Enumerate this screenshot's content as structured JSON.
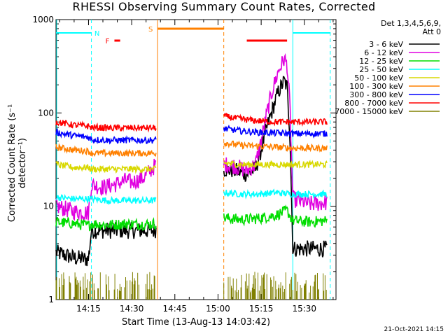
{
  "chart_data": {
    "type": "line",
    "title": "RHESSI Observing Summary Count Rates, Corrected",
    "xlabel": "Start Time (13-Aug-13 14:03:42)",
    "ylabel": "Corrected Count Rate (s⁻¹ detector⁻¹)",
    "yscale": "log",
    "ylim": [
      1,
      1000
    ],
    "xlim": [
      "14:03:42",
      "15:41:00"
    ],
    "x_ticks": [
      "14:15",
      "14:30",
      "14:45",
      "15:00",
      "15:15",
      "15:30"
    ],
    "y_ticks": [
      "1",
      "10",
      "100",
      "1000"
    ],
    "legend_header": [
      "Det 1,3,4,5,6,9,",
      "Att 0"
    ],
    "legend_position": "right",
    "data_gaps": [
      [
        "14:38:40",
        "15:02:00"
      ]
    ],
    "series": [
      {
        "name": "3 - 6 keV",
        "color": "#000000",
        "points": [
          [
            "14:03:42",
            3.2
          ],
          [
            "14:10",
            2.8
          ],
          [
            "14:15",
            2.7
          ],
          [
            "14:16",
            5.5
          ],
          [
            "14:22",
            5.5
          ],
          [
            "14:28",
            5.5
          ],
          [
            "14:34",
            5.5
          ],
          [
            "14:38",
            5.5
          ],
          [
            "15:02",
            25
          ],
          [
            "15:06",
            24
          ],
          [
            "15:10",
            22
          ],
          [
            "15:13",
            25
          ],
          [
            "15:15",
            40
          ],
          [
            "15:17",
            70
          ],
          [
            "15:19",
            110
          ],
          [
            "15:21",
            170
          ],
          [
            "15:23",
            220
          ],
          [
            "15:24",
            190
          ],
          [
            "15:25",
            60
          ],
          [
            "15:26",
            3.5
          ],
          [
            "15:32",
            3.5
          ],
          [
            "15:38",
            3.5
          ]
        ]
      },
      {
        "name": "6 - 12 keV",
        "color": "#e000e0",
        "points": [
          [
            "14:03:42",
            10
          ],
          [
            "14:10",
            8.8
          ],
          [
            "14:15",
            8.5
          ],
          [
            "14:16",
            17
          ],
          [
            "14:20",
            16
          ],
          [
            "14:24",
            17
          ],
          [
            "14:28",
            19
          ],
          [
            "14:30",
            18
          ],
          [
            "14:34",
            20
          ],
          [
            "14:38",
            27
          ],
          [
            "15:02",
            28
          ],
          [
            "15:06",
            27
          ],
          [
            "15:10",
            24
          ],
          [
            "15:13",
            28
          ],
          [
            "15:15",
            50
          ],
          [
            "15:17",
            100
          ],
          [
            "15:19",
            180
          ],
          [
            "15:21",
            280
          ],
          [
            "15:23",
            380
          ],
          [
            "15:24",
            330
          ],
          [
            "15:25",
            120
          ],
          [
            "15:26",
            12
          ],
          [
            "15:32",
            10.5
          ],
          [
            "15:38",
            11
          ]
        ]
      },
      {
        "name": "12 - 25 keV",
        "color": "#00dd00",
        "points": [
          [
            "14:03:42",
            6.8
          ],
          [
            "14:10",
            6.5
          ],
          [
            "14:15",
            6.2
          ],
          [
            "14:16",
            6.5
          ],
          [
            "14:22",
            6.3
          ],
          [
            "14:28",
            6.5
          ],
          [
            "14:34",
            6.4
          ],
          [
            "14:38",
            6.5
          ],
          [
            "15:02",
            7.5
          ],
          [
            "15:08",
            7.2
          ],
          [
            "15:14",
            7.4
          ],
          [
            "15:20",
            8
          ],
          [
            "15:24",
            9
          ],
          [
            "15:26",
            7
          ],
          [
            "15:32",
            6.8
          ],
          [
            "15:38",
            7
          ]
        ]
      },
      {
        "name": "25 - 50 keV",
        "color": "#00ffff",
        "points": [
          [
            "14:03:42",
            12.5
          ],
          [
            "14:10",
            12
          ],
          [
            "14:15",
            12
          ],
          [
            "14:16",
            12
          ],
          [
            "14:22",
            11.5
          ],
          [
            "14:28",
            11.5
          ],
          [
            "14:34",
            11.5
          ],
          [
            "14:38",
            11.5
          ],
          [
            "15:02",
            14
          ],
          [
            "15:08",
            13.5
          ],
          [
            "15:14",
            13.5
          ],
          [
            "15:20",
            14
          ],
          [
            "15:26",
            13.5
          ],
          [
            "15:32",
            13.5
          ],
          [
            "15:38",
            13.5
          ]
        ]
      },
      {
        "name": "50 - 100 keV",
        "color": "#d8d800",
        "points": [
          [
            "14:03:42",
            28
          ],
          [
            "14:10",
            26
          ],
          [
            "14:15",
            26
          ],
          [
            "14:16",
            25
          ],
          [
            "14:22",
            25
          ],
          [
            "14:28",
            25
          ],
          [
            "14:34",
            25
          ],
          [
            "14:38",
            25
          ],
          [
            "15:02",
            29
          ],
          [
            "15:08",
            28
          ],
          [
            "15:14",
            28
          ],
          [
            "15:20",
            28
          ],
          [
            "15:26",
            28
          ],
          [
            "15:32",
            28
          ],
          [
            "15:38",
            28
          ]
        ]
      },
      {
        "name": "100 - 300 keV",
        "color": "#ff8000",
        "points": [
          [
            "14:03:42",
            43
          ],
          [
            "14:10",
            40
          ],
          [
            "14:15",
            39
          ],
          [
            "14:16",
            37
          ],
          [
            "14:22",
            37
          ],
          [
            "14:28",
            37
          ],
          [
            "14:34",
            37
          ],
          [
            "14:38",
            37
          ],
          [
            "15:02",
            48
          ],
          [
            "15:08",
            45
          ],
          [
            "15:14",
            44
          ],
          [
            "15:20",
            43
          ],
          [
            "15:26",
            42
          ],
          [
            "15:32",
            42
          ],
          [
            "15:38",
            42
          ]
        ]
      },
      {
        "name": "300 - 800 keV",
        "color": "#0000ff",
        "points": [
          [
            "14:03:42",
            62
          ],
          [
            "14:10",
            57
          ],
          [
            "14:15",
            55
          ],
          [
            "14:16",
            52
          ],
          [
            "14:22",
            51
          ],
          [
            "14:28",
            51
          ],
          [
            "14:34",
            51
          ],
          [
            "14:38",
            51
          ],
          [
            "15:02",
            68
          ],
          [
            "15:08",
            64
          ],
          [
            "15:14",
            62
          ],
          [
            "15:20",
            61
          ],
          [
            "15:26",
            60
          ],
          [
            "15:32",
            60
          ],
          [
            "15:38",
            60
          ]
        ]
      },
      {
        "name": "800 - 7000 keV",
        "color": "#ff0000",
        "points": [
          [
            "14:03:42",
            80
          ],
          [
            "14:10",
            74
          ],
          [
            "14:15",
            72
          ],
          [
            "14:16",
            70
          ],
          [
            "14:22",
            69
          ],
          [
            "14:28",
            69
          ],
          [
            "14:34",
            69
          ],
          [
            "14:38",
            69
          ],
          [
            "15:02",
            92
          ],
          [
            "15:08",
            86
          ],
          [
            "15:14",
            82
          ],
          [
            "15:20",
            80
          ],
          [
            "15:26",
            80
          ],
          [
            "15:32",
            80
          ],
          [
            "15:38",
            80
          ]
        ]
      },
      {
        "name": "7000 - 15000 keV",
        "color": "#808000",
        "points": [
          [
            "14:03:42",
            1.5
          ],
          [
            "14:07",
            1.5
          ],
          [
            "15:02",
            1.5
          ],
          [
            "15:04",
            1.5
          ],
          [
            "15:26",
            1.5
          ],
          [
            "15:38",
            1.5
          ]
        ]
      }
    ],
    "annotations": [
      {
        "label": "N",
        "color": "#00ffff",
        "type": "night",
        "intervals": [
          [
            "14:03:42",
            "14:16"
          ],
          [
            "15:26",
            "15:39"
          ]
        ]
      },
      {
        "label": "F",
        "color": "#ff0000",
        "type": "flare",
        "intervals": [
          [
            "14:24",
            "14:26"
          ],
          [
            "15:10",
            "15:24"
          ]
        ]
      },
      {
        "label": "S",
        "color": "#ff8000",
        "type": "saa",
        "intervals": [
          [
            "14:39",
            "15:02"
          ]
        ]
      }
    ]
  },
  "footer": {
    "timestamp": "21-Oct-2021 14:15"
  }
}
